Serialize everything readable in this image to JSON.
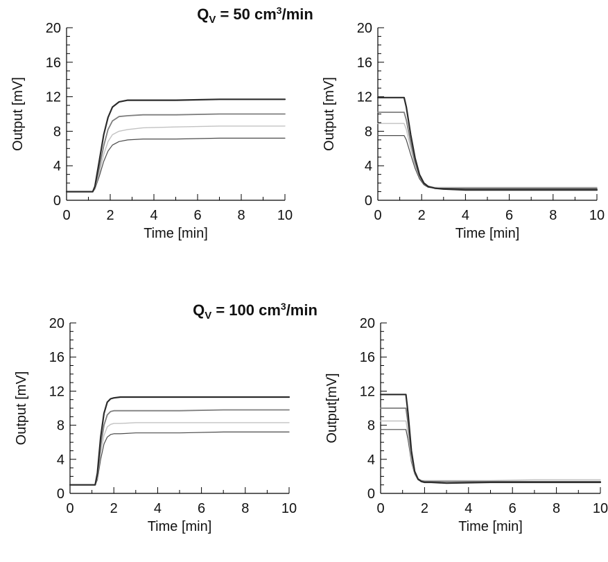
{
  "titles": [
    {
      "main": "Q",
      "sub": "V",
      "rest": " = 50 cm",
      "sup": "3",
      "tail": "/min"
    },
    {
      "main": "Q",
      "sub": "V",
      "rest": " = 100 cm",
      "sup": "3",
      "tail": "/min"
    }
  ],
  "colors": {
    "series": [
      "#2b2b2b",
      "#7d7d7d",
      "#c2c2c2",
      "#4a4a4a"
    ],
    "axis": "#000000"
  },
  "chart_data": [
    {
      "type": "line",
      "xlabel": "Time [min]",
      "ylabel": "Output [mV]",
      "xlim": [
        0,
        10
      ],
      "ylim": [
        0,
        20
      ],
      "x_ticks": [
        "0",
        "2",
        "4",
        "6",
        "8",
        "10"
      ],
      "y_ticks": [
        "0",
        "4",
        "8",
        "12",
        "16",
        "20"
      ],
      "grid": false,
      "legend": "none",
      "series": [
        {
          "x": [
            0,
            1.2,
            1.3,
            1.5,
            1.7,
            1.9,
            2.1,
            2.4,
            2.8,
            3.5,
            5,
            7,
            10
          ],
          "y": [
            1.0,
            1.0,
            1.6,
            4.6,
            7.6,
            9.6,
            10.8,
            11.4,
            11.6,
            11.6,
            11.6,
            11.7,
            11.7
          ]
        },
        {
          "x": [
            0,
            1.2,
            1.3,
            1.5,
            1.7,
            1.9,
            2.1,
            2.4,
            2.8,
            3.5,
            5,
            7,
            10
          ],
          "y": [
            1.0,
            1.0,
            1.5,
            3.8,
            6.3,
            8.2,
            9.2,
            9.7,
            9.8,
            9.9,
            9.9,
            10.0,
            10.0
          ]
        },
        {
          "x": [
            0,
            1.2,
            1.3,
            1.5,
            1.7,
            1.9,
            2.1,
            2.4,
            2.8,
            3.5,
            5,
            7,
            10
          ],
          "y": [
            1.0,
            1.0,
            1.4,
            3.2,
            5.3,
            6.8,
            7.6,
            8.0,
            8.2,
            8.4,
            8.5,
            8.6,
            8.6
          ]
        },
        {
          "x": [
            0,
            1.2,
            1.3,
            1.5,
            1.7,
            1.9,
            2.1,
            2.4,
            2.8,
            3.5,
            5,
            7,
            10
          ],
          "y": [
            1.0,
            1.0,
            1.3,
            2.8,
            4.5,
            5.7,
            6.4,
            6.8,
            7.0,
            7.1,
            7.1,
            7.2,
            7.2
          ]
        }
      ]
    },
    {
      "type": "line",
      "xlabel": "Time [min]",
      "ylabel": "Output [mV]",
      "xlim": [
        0,
        10
      ],
      "ylim": [
        0,
        20
      ],
      "x_ticks": [
        "0",
        "2",
        "4",
        "6",
        "8",
        "10"
      ],
      "y_ticks": [
        "0",
        "4",
        "8",
        "12",
        "16",
        "20"
      ],
      "grid": false,
      "legend": "none",
      "series": [
        {
          "x": [
            0,
            1.2,
            1.3,
            1.5,
            1.7,
            1.9,
            2.1,
            2.3,
            2.6,
            3.0,
            4,
            6,
            8,
            10
          ],
          "y": [
            11.9,
            11.9,
            10.8,
            7.6,
            4.9,
            3.0,
            2.0,
            1.6,
            1.4,
            1.3,
            1.2,
            1.2,
            1.2,
            1.2
          ]
        },
        {
          "x": [
            0,
            1.2,
            1.3,
            1.5,
            1.7,
            1.9,
            2.1,
            2.3,
            2.6,
            3.0,
            4,
            6,
            8,
            10
          ],
          "y": [
            10.2,
            10.2,
            9.3,
            6.7,
            4.4,
            2.8,
            1.9,
            1.6,
            1.4,
            1.3,
            1.3,
            1.3,
            1.3,
            1.3
          ]
        },
        {
          "x": [
            0,
            1.2,
            1.3,
            1.5,
            1.7,
            1.9,
            2.1,
            2.3,
            2.6,
            3.0,
            4,
            6,
            8,
            10
          ],
          "y": [
            8.9,
            8.9,
            8.2,
            6.0,
            4.0,
            2.7,
            1.9,
            1.6,
            1.5,
            1.5,
            1.5,
            1.5,
            1.5,
            1.5
          ]
        },
        {
          "x": [
            0,
            1.2,
            1.3,
            1.5,
            1.7,
            1.9,
            2.1,
            2.3,
            2.6,
            3.0,
            4,
            6,
            8,
            10
          ],
          "y": [
            7.5,
            7.5,
            7.0,
            5.3,
            3.7,
            2.5,
            1.8,
            1.5,
            1.4,
            1.4,
            1.4,
            1.4,
            1.4,
            1.4
          ]
        }
      ]
    },
    {
      "type": "line",
      "xlabel": "Time [min]",
      "ylabel": "Output [mV]",
      "xlim": [
        0,
        10
      ],
      "ylim": [
        0,
        20
      ],
      "x_ticks": [
        "0",
        "2",
        "4",
        "6",
        "8",
        "10"
      ],
      "y_ticks": [
        "0",
        "4",
        "8",
        "12",
        "16",
        "20"
      ],
      "grid": false,
      "legend": "none",
      "series": [
        {
          "x": [
            0,
            1.15,
            1.25,
            1.4,
            1.55,
            1.7,
            1.85,
            2.0,
            2.3,
            3.0,
            5,
            7,
            10
          ],
          "y": [
            1.0,
            1.0,
            2.4,
            6.6,
            9.4,
            10.7,
            11.1,
            11.2,
            11.3,
            11.3,
            11.3,
            11.3,
            11.3
          ]
        },
        {
          "x": [
            0,
            1.15,
            1.25,
            1.4,
            1.55,
            1.7,
            1.85,
            2.0,
            2.3,
            3.0,
            5,
            7,
            10
          ],
          "y": [
            1.0,
            1.0,
            2.0,
            5.6,
            8.0,
            9.2,
            9.6,
            9.7,
            9.7,
            9.7,
            9.7,
            9.8,
            9.8
          ]
        },
        {
          "x": [
            0,
            1.15,
            1.25,
            1.4,
            1.55,
            1.7,
            1.85,
            2.0,
            2.3,
            3.0,
            5,
            7,
            10
          ],
          "y": [
            1.0,
            1.0,
            1.8,
            4.8,
            6.8,
            7.8,
            8.1,
            8.2,
            8.2,
            8.3,
            8.3,
            8.3,
            8.3
          ]
        },
        {
          "x": [
            0,
            1.15,
            1.25,
            1.4,
            1.55,
            1.7,
            1.85,
            2.0,
            2.3,
            3.0,
            5,
            7,
            10
          ],
          "y": [
            1.0,
            1.0,
            1.6,
            4.0,
            5.8,
            6.6,
            6.9,
            7.0,
            7.0,
            7.1,
            7.1,
            7.2,
            7.2
          ]
        }
      ]
    },
    {
      "type": "line",
      "xlabel": "Time [min]",
      "ylabel": "Output[mV]",
      "xlim": [
        0,
        10
      ],
      "ylim": [
        0,
        20
      ],
      "x_ticks": [
        "0",
        "2",
        "4",
        "6",
        "8",
        "10"
      ],
      "y_ticks": [
        "0",
        "4",
        "8",
        "12",
        "16",
        "20"
      ],
      "grid": false,
      "legend": "none",
      "series": [
        {
          "x": [
            0,
            1.15,
            1.25,
            1.4,
            1.55,
            1.7,
            1.85,
            2.0,
            2.3,
            3.0,
            5,
            7,
            10
          ],
          "y": [
            11.6,
            11.6,
            9.4,
            5.0,
            2.6,
            1.7,
            1.4,
            1.3,
            1.3,
            1.2,
            1.3,
            1.3,
            1.3
          ]
        },
        {
          "x": [
            0,
            1.15,
            1.25,
            1.4,
            1.55,
            1.7,
            1.85,
            2.0,
            2.3,
            3.0,
            5,
            7,
            10
          ],
          "y": [
            10.0,
            10.0,
            8.2,
            4.5,
            2.5,
            1.7,
            1.5,
            1.4,
            1.4,
            1.4,
            1.4,
            1.4,
            1.4
          ]
        },
        {
          "x": [
            0,
            1.15,
            1.25,
            1.4,
            1.55,
            1.7,
            1.85,
            2.0,
            2.3,
            3.0,
            5,
            7,
            10
          ],
          "y": [
            8.5,
            8.5,
            7.0,
            4.0,
            2.4,
            1.7,
            1.5,
            1.5,
            1.5,
            1.5,
            1.5,
            1.6,
            1.6
          ]
        },
        {
          "x": [
            0,
            1.15,
            1.25,
            1.4,
            1.55,
            1.7,
            1.85,
            2.0,
            2.3,
            3.0,
            5,
            7,
            10
          ],
          "y": [
            7.5,
            7.5,
            6.3,
            3.7,
            2.3,
            1.6,
            1.4,
            1.4,
            1.4,
            1.4,
            1.4,
            1.4,
            1.4
          ]
        }
      ]
    }
  ]
}
